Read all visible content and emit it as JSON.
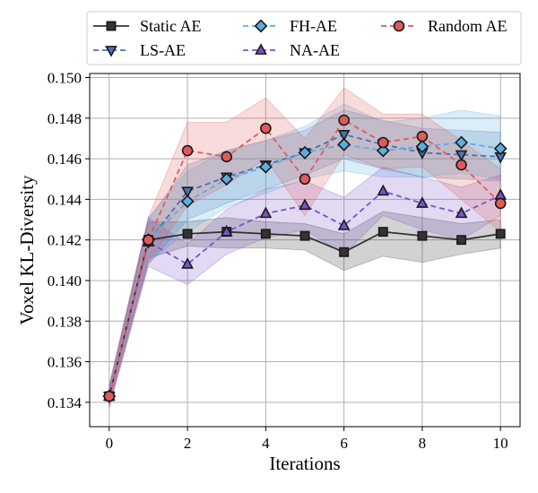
{
  "chart_data": {
    "type": "line",
    "xlabel": "Iterations",
    "ylabel": "Voxel KL-Diversity",
    "xlim": [
      -0.5,
      10.5
    ],
    "ylim": [
      0.1328,
      0.1502
    ],
    "x_ticks": [
      0,
      2,
      4,
      6,
      8,
      10
    ],
    "x_tick_labels": [
      "0",
      "2",
      "4",
      "6",
      "8",
      "10"
    ],
    "y_ticks": [
      0.134,
      0.136,
      0.138,
      0.14,
      0.142,
      0.144,
      0.146,
      0.148,
      0.15
    ],
    "y_tick_labels": [
      "0.134",
      "0.136",
      "0.138",
      "0.140",
      "0.142",
      "0.144",
      "0.146",
      "0.148",
      "0.150"
    ],
    "grid": true,
    "legend_position": "top",
    "x": [
      0,
      1,
      2,
      3,
      4,
      5,
      6,
      7,
      8,
      9,
      10
    ],
    "series": [
      {
        "name": "Static AE",
        "color": "#333333",
        "marker": "square",
        "linestyle": "solid",
        "values": [
          0.1343,
          0.142,
          0.1423,
          0.1424,
          0.1423,
          0.1422,
          0.1414,
          0.1424,
          0.1422,
          0.142,
          0.1423
        ],
        "lower": [
          0.1339,
          0.1411,
          0.1417,
          0.1416,
          0.1416,
          0.1415,
          0.1405,
          0.1412,
          0.1409,
          0.1413,
          0.1416
        ],
        "upper": [
          0.1347,
          0.1429,
          0.1429,
          0.1431,
          0.1429,
          0.1428,
          0.1423,
          0.1434,
          0.1431,
          0.1428,
          0.143
        ]
      },
      {
        "name": "LS-AE",
        "color": "#4a72b0",
        "marker": "triangle-down",
        "linestyle": "dashed",
        "values": [
          0.1343,
          0.1419,
          0.1444,
          0.1451,
          0.1457,
          0.1463,
          0.1472,
          0.1467,
          0.1463,
          0.1462,
          0.1461
        ],
        "lower": [
          0.1339,
          0.1408,
          0.143,
          0.1438,
          0.1445,
          0.1452,
          0.146,
          0.1455,
          0.1451,
          0.145,
          0.1449
        ],
        "upper": [
          0.1347,
          0.143,
          0.1457,
          0.1464,
          0.1469,
          0.1474,
          0.1484,
          0.1479,
          0.1475,
          0.1474,
          0.1473
        ]
      },
      {
        "name": "FH-AE",
        "color": "#5aaee0",
        "marker": "diamond",
        "linestyle": "dashed",
        "values": [
          0.1343,
          0.142,
          0.1439,
          0.145,
          0.1456,
          0.1463,
          0.1467,
          0.1464,
          0.1466,
          0.1468,
          0.1465
        ],
        "lower": [
          0.1339,
          0.1409,
          0.1424,
          0.1436,
          0.1443,
          0.145,
          0.1454,
          0.1451,
          0.1451,
          0.1453,
          0.145
        ],
        "upper": [
          0.1347,
          0.1431,
          0.1454,
          0.1464,
          0.1469,
          0.1476,
          0.1487,
          0.1478,
          0.148,
          0.1484,
          0.1481
        ]
      },
      {
        "name": "NA-AE",
        "color": "#7b52c9",
        "marker": "triangle-up",
        "linestyle": "dashed",
        "values": [
          0.1343,
          0.1419,
          0.1408,
          0.1424,
          0.1433,
          0.1437,
          0.1427,
          0.1444,
          0.1438,
          0.1433,
          0.1442
        ],
        "lower": [
          0.1337,
          0.1407,
          0.1398,
          0.1413,
          0.1421,
          0.1425,
          0.1413,
          0.1432,
          0.1425,
          0.142,
          0.1432
        ],
        "upper": [
          0.1349,
          0.1431,
          0.1418,
          0.1435,
          0.1445,
          0.1449,
          0.1441,
          0.1456,
          0.1451,
          0.1446,
          0.1452
        ]
      },
      {
        "name": "Random AE",
        "color": "#e05a5a",
        "marker": "circle",
        "linestyle": "dashed",
        "values": [
          0.1343,
          0.142,
          0.1464,
          0.1461,
          0.1475,
          0.145,
          0.1479,
          0.1468,
          0.1471,
          0.1457,
          0.1438
        ],
        "lower": [
          0.1338,
          0.1409,
          0.1437,
          0.1447,
          0.146,
          0.1432,
          0.1462,
          0.1455,
          0.1456,
          0.144,
          0.1424
        ],
        "upper": [
          0.1348,
          0.1431,
          0.1478,
          0.1478,
          0.149,
          0.147,
          0.1495,
          0.1482,
          0.1482,
          0.1469,
          0.1455
        ]
      }
    ]
  }
}
